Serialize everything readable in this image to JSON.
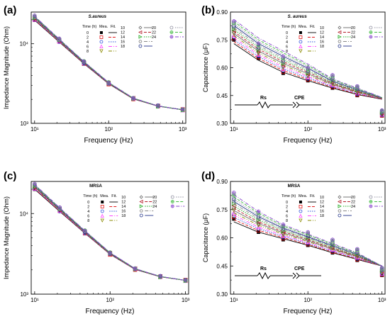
{
  "series_legend": [
    {
      "time": "0",
      "color": "#000000",
      "dash": "",
      "marker": "square-filled"
    },
    {
      "time": "2",
      "color": "#e31a1c",
      "dash": "4,2",
      "marker": "square"
    },
    {
      "time": "4",
      "color": "#3355dd",
      "dash": "1.5,1.5",
      "marker": "circle"
    },
    {
      "time": "6",
      "color": "#ff44ff",
      "dash": "5,2,1,2",
      "marker": "triangle-up"
    },
    {
      "time": "8",
      "color": "#8a8a00",
      "dash": "5,2,1,2,1,2",
      "marker": "triangle-down"
    },
    {
      "time": "10",
      "color": "#666666",
      "dash": "",
      "marker": "diamond"
    },
    {
      "time": "12",
      "color": "#b41e2a",
      "dash": "4,2",
      "marker": "triangle-left"
    },
    {
      "time": "14",
      "color": "#22aa22",
      "dash": "1.5,1.5",
      "marker": "triangle-right"
    },
    {
      "time": "16",
      "color": "#888888",
      "dash": "5,2,1,2",
      "marker": "hexagon"
    },
    {
      "time": "18",
      "color": "#223388",
      "dash": "",
      "marker": "circle"
    },
    {
      "time": "20",
      "color": "#9090a0",
      "dash": "1.5,1.5",
      "marker": "circle"
    },
    {
      "time": "22",
      "color": "#44bb44",
      "dash": "4,2",
      "marker": "circle-cross"
    },
    {
      "time": "24",
      "color": "#8844cc",
      "dash": "5,2,1,2",
      "marker": "circle-cross"
    }
  ],
  "chart_data": [
    {
      "panel": "(a)",
      "type": "scatter",
      "subtitle": "S.aureus",
      "xlabel": "Frequency (Hz)",
      "ylabel": "Impedance Magnitude (Ohm)",
      "x_scale": "log",
      "y_scale": "log",
      "xlim": [
        9,
        1100
      ],
      "ylim": [
        1000,
        25000
      ],
      "x_ticks": [
        {
          "v": 10,
          "label": "10¹"
        },
        {
          "v": 100,
          "label": "10²"
        },
        {
          "v": 1000,
          "label": "10³"
        }
      ],
      "y_ticks": [
        {
          "v": 1000,
          "label": "10³"
        },
        {
          "v": 10000,
          "label": "10⁴"
        }
      ],
      "x": [
        10,
        21.5,
        46.4,
        100,
        215,
        464,
        1000
      ],
      "base": [
        21000,
        11000,
        5800,
        3200,
        2050,
        1650,
        1480
      ],
      "factor_range": [
        0.94,
        1.06
      ],
      "legend_header": [
        "Time (h)",
        "Mea.",
        "Fit."
      ],
      "legend_position": "top-right",
      "inset": null
    },
    {
      "panel": "(b)",
      "type": "scatter",
      "subtitle": "S. aureus",
      "xlabel": "Frequency (Hz)",
      "ylabel": "Capacitance (μF)",
      "x_scale": "log",
      "y_scale": "linear",
      "xlim": [
        9,
        1100
      ],
      "ylim": [
        0.3,
        0.9
      ],
      "x_ticks": [
        {
          "v": 10,
          "label": "10¹"
        },
        {
          "v": 100,
          "label": "10²"
        },
        {
          "v": 1000,
          "label": "10³"
        }
      ],
      "y_ticks": [
        {
          "v": 0.3,
          "label": "0.30"
        },
        {
          "v": 0.45,
          "label": "0.45"
        },
        {
          "v": 0.6,
          "label": "0.60"
        },
        {
          "v": 0.75,
          "label": "0.75"
        },
        {
          "v": 0.9,
          "label": "0.90"
        }
      ],
      "x": [
        10,
        21.5,
        46.4,
        100,
        215,
        464,
        1000
      ],
      "curve_lo": [
        0.73,
        0.64,
        0.575,
        0.53,
        0.49,
        0.455,
        0.43
      ],
      "curve_hi": [
        0.86,
        0.76,
        0.69,
        0.62,
        0.54,
        0.49,
        0.44
      ],
      "meas_lo": [
        0.75,
        0.65,
        0.57,
        0.53,
        0.49,
        0.45,
        0.34
      ],
      "meas_hi": [
        0.85,
        0.73,
        0.66,
        0.6,
        0.56,
        0.5,
        0.37
      ],
      "legend_header": [
        "Time (h)",
        "Mea.",
        "Fit."
      ],
      "legend_position": "top-right",
      "inset": {
        "labels": [
          "Rs",
          "CPE"
        ]
      }
    },
    {
      "panel": "(c)",
      "type": "scatter",
      "subtitle": "MRSA",
      "xlabel": "Frequency (Hz)",
      "ylabel": "Impedance Magnitude (Ohm)",
      "x_scale": "log",
      "y_scale": "log",
      "xlim": [
        9,
        1100
      ],
      "ylim": [
        1000,
        25000
      ],
      "x_ticks": [
        {
          "v": 10,
          "label": "10¹"
        },
        {
          "v": 100,
          "label": "10²"
        },
        {
          "v": 1000,
          "label": "10³"
        }
      ],
      "y_ticks": [
        {
          "v": 1000,
          "label": "10³"
        },
        {
          "v": 10000,
          "label": "10⁴"
        }
      ],
      "x": [
        10,
        21.5,
        46.4,
        100,
        215,
        464,
        1000
      ],
      "base": [
        21500,
        11200,
        5900,
        3200,
        2050,
        1650,
        1480
      ],
      "factor_range": [
        0.93,
        1.07
      ],
      "legend_header": [
        "Time (h)",
        "Mea.",
        "Fit."
      ],
      "legend_position": "top-right",
      "inset": null
    },
    {
      "panel": "(d)",
      "type": "scatter",
      "subtitle": "MRSA",
      "xlabel": "Frequency (Hz)",
      "ylabel": "Capacitance (μF)",
      "x_scale": "log",
      "y_scale": "linear",
      "xlim": [
        9,
        1100
      ],
      "ylim": [
        0.3,
        0.9
      ],
      "x_ticks": [
        {
          "v": 10,
          "label": "10¹"
        },
        {
          "v": 100,
          "label": "10²"
        },
        {
          "v": 1000,
          "label": "10³"
        }
      ],
      "y_ticks": [
        {
          "v": 0.3,
          "label": "0.30"
        },
        {
          "v": 0.45,
          "label": "0.45"
        },
        {
          "v": 0.6,
          "label": "0.60"
        },
        {
          "v": 0.75,
          "label": "0.75"
        },
        {
          "v": 0.9,
          "label": "0.90"
        }
      ],
      "x": [
        10,
        21.5,
        46.4,
        100,
        215,
        464,
        1000
      ],
      "curve_lo": [
        0.685,
        0.63,
        0.595,
        0.56,
        0.52,
        0.485,
        0.45
      ],
      "curve_hi": [
        0.83,
        0.74,
        0.67,
        0.62,
        0.57,
        0.52,
        0.45
      ],
      "meas_lo": [
        0.7,
        0.63,
        0.59,
        0.56,
        0.52,
        0.48,
        0.4
      ],
      "meas_hi": [
        0.84,
        0.74,
        0.67,
        0.63,
        0.59,
        0.54,
        0.44
      ],
      "legend_header": [
        "Time (h)",
        "Mea.",
        "Fit."
      ],
      "legend_position": "top-right",
      "inset": {
        "labels": [
          "Rs",
          "CPE"
        ]
      }
    }
  ]
}
